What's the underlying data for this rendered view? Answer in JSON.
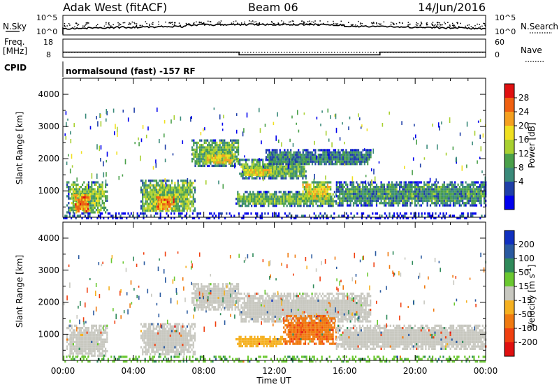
{
  "header": {
    "title_left": "Adak West (fitACF)",
    "title_center": "Beam 06",
    "title_right": "14/Jun/2016"
  },
  "info_panels": {
    "nsky": {
      "label": "N.Sky",
      "left_ticks": [
        "10^5",
        "10^0"
      ],
      "right_label": "N.Search",
      "right_ticks": [
        "10^5",
        "10^0"
      ]
    },
    "freq": {
      "label_top": "Freq.",
      "label_unit": "[MHz]",
      "left_ticks": [
        "18",
        "8"
      ],
      "right_label": "Nave",
      "right_ticks": [
        "60",
        "0"
      ],
      "segments_mhz": [
        {
          "from": "00:00",
          "to": "10:00",
          "value": 12
        },
        {
          "from": "10:00",
          "to": "18:00",
          "value": 10.5
        },
        {
          "from": "18:00",
          "to": "24:00",
          "value": 12
        }
      ]
    },
    "cpid": {
      "label": "CPID",
      "text": "normalsound (fast) -157 RF"
    }
  },
  "chart_data": [
    {
      "type": "heatmap",
      "name": "power",
      "xlabel": "",
      "ylabel": "Slant Range [km]",
      "xlim": [
        "00:00",
        "24:00"
      ],
      "ylim": [
        180,
        4500
      ],
      "x_ticks": [
        "00:00",
        "04:00",
        "08:00",
        "12:00",
        "16:00",
        "20:00",
        "00:00"
      ],
      "y_ticks": [
        1000,
        2000,
        3000,
        4000
      ],
      "colorbar": {
        "label": "Power [dB]",
        "range": [
          0,
          32
        ],
        "ticks": [
          4,
          8,
          12,
          16,
          20,
          24,
          28
        ],
        "colors": [
          "#0000ee",
          "#1f3fa8",
          "#3a8a7a",
          "#4aa04a",
          "#a8d030",
          "#f0e020",
          "#f5a020",
          "#f06010",
          "#e01010"
        ]
      },
      "echo_regions": [
        {
          "t0": 0.2,
          "t1": 2.5,
          "r0": 300,
          "r1": 1300,
          "power_db": 14
        },
        {
          "t0": 0.6,
          "t1": 1.5,
          "r0": 350,
          "r1": 900,
          "power_db": 26
        },
        {
          "t0": 4.4,
          "t1": 7.5,
          "r0": 350,
          "r1": 1350,
          "power_db": 14
        },
        {
          "t0": 5.2,
          "t1": 6.3,
          "r0": 400,
          "r1": 900,
          "power_db": 24
        },
        {
          "t0": 7.3,
          "t1": 10.0,
          "r0": 1800,
          "r1": 2600,
          "power_db": 13
        },
        {
          "t0": 8.0,
          "t1": 9.6,
          "r0": 1850,
          "r1": 2200,
          "power_db": 20
        },
        {
          "t0": 10.0,
          "t1": 13.8,
          "r0": 1400,
          "r1": 2000,
          "power_db": 13
        },
        {
          "t0": 10.2,
          "t1": 11.8,
          "r0": 1500,
          "r1": 1750,
          "power_db": 19
        },
        {
          "t0": 11.5,
          "t1": 17.5,
          "r0": 1800,
          "r1": 2300,
          "power_db": 9
        },
        {
          "t0": 9.8,
          "t1": 15.5,
          "r0": 550,
          "r1": 1000,
          "power_db": 13
        },
        {
          "t0": 13.5,
          "t1": 15.2,
          "r0": 700,
          "r1": 1300,
          "power_db": 18
        },
        {
          "t0": 15.5,
          "t1": 24.0,
          "r0": 550,
          "r1": 1300,
          "power_db": 10
        },
        {
          "t0": 0.0,
          "t1": 24.0,
          "r0": 180,
          "r1": 330,
          "power_db": 6
        }
      ]
    },
    {
      "type": "heatmap",
      "name": "velocity",
      "xlabel": "Time UT",
      "ylabel": "Slant Range [km]",
      "xlim": [
        "00:00",
        "24:00"
      ],
      "ylim": [
        180,
        4500
      ],
      "x_ticks": [
        "00:00",
        "04:00",
        "08:00",
        "12:00",
        "16:00",
        "20:00",
        "00:00"
      ],
      "y_ticks": [
        1000,
        2000,
        3000,
        4000
      ],
      "colorbar": {
        "label": "Velocity [m s-1]",
        "ticks": [
          200,
          100,
          50,
          15,
          -15,
          -50,
          -100,
          -200
        ],
        "colors": [
          "#1030c0",
          "#2a5aa0",
          "#2f8a5a",
          "#6ac830",
          "#c8c8c0",
          "#f5b020",
          "#f07a10",
          "#f04010",
          "#e01010"
        ]
      },
      "echo_regions": [
        {
          "t0": 0.2,
          "t1": 2.5,
          "r0": 300,
          "r1": 1300,
          "velocity": 0
        },
        {
          "t0": 4.4,
          "t1": 7.5,
          "r0": 350,
          "r1": 1350,
          "velocity": 0
        },
        {
          "t0": 7.3,
          "t1": 10.0,
          "r0": 1800,
          "r1": 2600,
          "velocity": 0
        },
        {
          "t0": 10.0,
          "t1": 17.5,
          "r0": 1400,
          "r1": 2300,
          "velocity": 0
        },
        {
          "t0": 9.8,
          "t1": 12.5,
          "r0": 650,
          "r1": 950,
          "velocity": -30
        },
        {
          "t0": 12.5,
          "t1": 15.5,
          "r0": 700,
          "r1": 1600,
          "velocity": -90
        },
        {
          "t0": 15.5,
          "t1": 24.0,
          "r0": 550,
          "r1": 1300,
          "velocity": 0
        },
        {
          "t0": 0.0,
          "t1": 24.0,
          "r0": 180,
          "r1": 330,
          "velocity": 40
        }
      ]
    }
  ]
}
